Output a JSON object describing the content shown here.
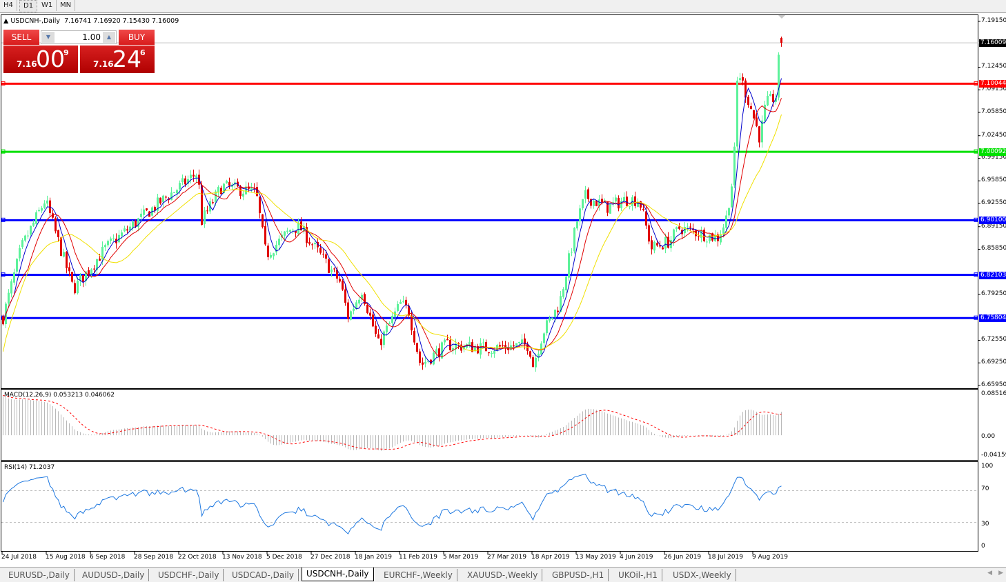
{
  "toolbar": {
    "timeframes": [
      "H4",
      "D1",
      "W1",
      "MN"
    ],
    "active": "D1"
  },
  "chart": {
    "symbol_title": "USDCNH-,Daily",
    "ohlc": "7.16741 7.16920 7.15430 7.16009",
    "trade_panel": {
      "sell_label": "SELL",
      "buy_label": "BUY",
      "quantity": "1.00",
      "sell_price": {
        "prefix": "7.16",
        "big": "00",
        "sup": "9"
      },
      "buy_price": {
        "prefix": "7.16",
        "big": "24",
        "sup": "6"
      }
    },
    "colors": {
      "bull": "#5cf29a",
      "bear": "#e00000",
      "ma_fast": "#0000cc",
      "ma_mid": "#e00000",
      "ma_slow": "#f0e000"
    }
  },
  "price_axis": {
    "labels": [
      "7.19150",
      "7.12450",
      "7.09150",
      "7.05850",
      "7.02450",
      "6.99150",
      "6.95850",
      "6.92550",
      "6.89150",
      "6.85850",
      "6.79250",
      "6.72550",
      "6.69250",
      "6.65950"
    ],
    "range": [
      6.6595,
      7.1915
    ],
    "current_price": "7.16009"
  },
  "levels": [
    {
      "price": "7.10044",
      "color": "#ff0000"
    },
    {
      "price": "7.00092",
      "color": "#00e000"
    },
    {
      "price": "6.90100",
      "color": "#0000ff"
    },
    {
      "price": "6.82103",
      "color": "#0000ff"
    },
    {
      "price": "6.75804",
      "color": "#0000ff"
    }
  ],
  "chart_data": {
    "type": "candlestick",
    "x_ticks": [
      "24 Jul 2018",
      "15 Aug 2018",
      "6 Sep 2018",
      "28 Sep 2018",
      "22 Oct 2018",
      "13 Nov 2018",
      "5 Dec 2018",
      "27 Dec 2018",
      "18 Jan 2019",
      "11 Feb 2019",
      "5 Mar 2019",
      "27 Mar 2019",
      "18 Apr 2019",
      "13 May 2019",
      "4 Jun 2019",
      "26 Jun 2019",
      "18 Jul 2019",
      "9 Aug 2019"
    ],
    "tick_dates": [
      "2018-07-24",
      "2018-08-15",
      "2018-09-06",
      "2018-09-28",
      "2018-10-22",
      "2018-11-13",
      "2018-12-05",
      "2018-12-27",
      "2019-01-18",
      "2019-02-11",
      "2019-03-05",
      "2019-03-27",
      "2019-04-18",
      "2019-05-13",
      "2019-06-04",
      "2019-06-26",
      "2019-07-18",
      "2019-08-09"
    ],
    "close_keypoints": [
      [
        "2018-07-24",
        6.759
      ],
      [
        "2018-08-02",
        6.86
      ],
      [
        "2018-08-14",
        6.931
      ],
      [
        "2018-08-28",
        6.8
      ],
      [
        "2018-09-13",
        6.86
      ],
      [
        "2018-10-08",
        6.92
      ],
      [
        "2018-10-31",
        6.971
      ],
      [
        "2018-11-02",
        6.9
      ],
      [
        "2018-11-12",
        6.951
      ],
      [
        "2018-11-29",
        6.941
      ],
      [
        "2018-12-04",
        6.85
      ],
      [
        "2018-12-17",
        6.89
      ],
      [
        "2018-12-21",
        6.89
      ],
      [
        "2019-01-10",
        6.81
      ],
      [
        "2019-01-14",
        6.759
      ],
      [
        "2019-01-21",
        6.8
      ],
      [
        "2019-01-30",
        6.719
      ],
      [
        "2019-02-11",
        6.779
      ],
      [
        "2019-02-15",
        6.769
      ],
      [
        "2019-02-21",
        6.689
      ],
      [
        "2019-03-06",
        6.719
      ],
      [
        "2019-03-26",
        6.714
      ],
      [
        "2019-04-16",
        6.719
      ],
      [
        "2019-04-18",
        6.689
      ],
      [
        "2019-04-24",
        6.739
      ],
      [
        "2019-05-03",
        6.779
      ],
      [
        "2019-05-13",
        6.9
      ],
      [
        "2019-05-17",
        6.936
      ],
      [
        "2019-05-28",
        6.92
      ],
      [
        "2019-06-06",
        6.931
      ],
      [
        "2019-06-13",
        6.931
      ],
      [
        "2019-06-19",
        6.86
      ],
      [
        "2019-06-28",
        6.87
      ],
      [
        "2019-07-03",
        6.89
      ],
      [
        "2019-07-22",
        6.875
      ],
      [
        "2019-07-26",
        6.9
      ],
      [
        "2019-07-30",
        6.971
      ],
      [
        "2019-08-01",
        7.122
      ],
      [
        "2019-08-08",
        7.061
      ],
      [
        "2019-08-12",
        7.021
      ],
      [
        "2019-08-15",
        7.071
      ],
      [
        "2019-08-20",
        7.082
      ],
      [
        "2019-08-21",
        7.127
      ],
      [
        "2019-08-23",
        7.16
      ]
    ],
    "last": {
      "open": 7.16741,
      "high": 7.1692,
      "low": 7.1543,
      "close": 7.16009
    }
  },
  "macd": {
    "label": "MACD(12,26,9) 0.053213 0.046062",
    "axis": [
      "0.085164",
      "0.00",
      "-0.04159"
    ],
    "range": [
      -0.04159,
      0.085164
    ]
  },
  "rsi": {
    "label": "RSI(14) 71.2037",
    "axis": [
      "100",
      "70",
      "30",
      "0"
    ],
    "levels": [
      70,
      30
    ]
  },
  "tabs": [
    "EURUSD-,Daily",
    "AUDUSD-,Daily",
    "USDCHF-,Daily",
    "USDCAD-,Daily",
    "USDCNH-,Daily",
    "EURCHF-,Weekly",
    "XAUUSD-,Weekly",
    "GBPUSD-,H1",
    "UKOil-,H1",
    "USDX-,Weekly"
  ],
  "active_tab": "USDCNH-,Daily"
}
